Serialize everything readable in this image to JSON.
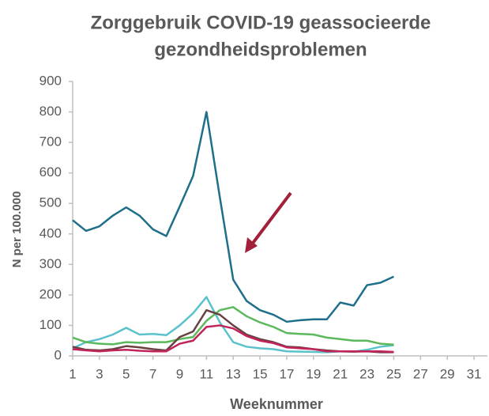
{
  "chart_data": {
    "type": "line",
    "title": [
      "Zorggebruik COVID-19 geassocieerde",
      "gezondheidsproblemen"
    ],
    "x_label": "Weeknummer",
    "y_label": "N per 100.000",
    "x": [
      1,
      2,
      3,
      4,
      5,
      6,
      7,
      8,
      9,
      10,
      11,
      12,
      13,
      14,
      15,
      16,
      17,
      18,
      19,
      20,
      21,
      22,
      23,
      24,
      25
    ],
    "xlim": [
      1,
      32
    ],
    "xticks": [
      1,
      3,
      5,
      7,
      9,
      11,
      13,
      15,
      17,
      19,
      21,
      23,
      25,
      27,
      29,
      31
    ],
    "ylim": [
      0,
      900
    ],
    "yticks": [
      0,
      100,
      200,
      300,
      400,
      500,
      600,
      700,
      800,
      900
    ],
    "grid": false,
    "series": [
      {
        "color": "#1f6f8b",
        "values": [
          445,
          410,
          425,
          460,
          487,
          460,
          415,
          393,
          490,
          590,
          800,
          520,
          250,
          180,
          150,
          135,
          112,
          117,
          120,
          120,
          175,
          165,
          232,
          240,
          260
        ]
      },
      {
        "color": "#5bc2cc",
        "values": [
          25,
          45,
          55,
          70,
          92,
          70,
          72,
          68,
          100,
          140,
          193,
          110,
          45,
          30,
          25,
          22,
          15,
          14,
          13,
          12,
          15,
          14,
          20,
          30,
          35
        ]
      },
      {
        "color": "#5cb85c",
        "values": [
          60,
          45,
          40,
          38,
          45,
          43,
          45,
          45,
          55,
          62,
          115,
          150,
          160,
          130,
          110,
          95,
          75,
          72,
          70,
          60,
          55,
          50,
          50,
          40,
          37
        ]
      },
      {
        "color": "#6b4040",
        "values": [
          30,
          20,
          18,
          22,
          32,
          28,
          22,
          18,
          62,
          80,
          150,
          135,
          100,
          70,
          55,
          45,
          30,
          28,
          22,
          18,
          15,
          14,
          15,
          12,
          12
        ]
      },
      {
        "color": "#c0245a",
        "values": [
          22,
          18,
          15,
          18,
          20,
          17,
          15,
          15,
          40,
          50,
          95,
          100,
          90,
          65,
          50,
          42,
          28,
          25,
          22,
          15,
          15,
          15,
          15,
          15,
          13
        ]
      }
    ]
  }
}
